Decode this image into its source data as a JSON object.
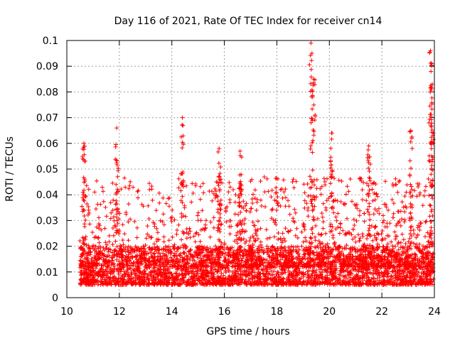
{
  "chart_data": {
    "type": "scatter",
    "title": "Day 116 of 2021, Rate Of TEC Index for receiver cn14",
    "xlabel": "GPS time / hours",
    "ylabel": "ROTI / TECUs",
    "xlim": [
      10,
      24
    ],
    "ylim": [
      0,
      0.1
    ],
    "grid": true,
    "marker": "plus",
    "color": "#ff0000",
    "x_ticks": [
      10,
      12,
      14,
      16,
      18,
      20,
      22,
      24
    ],
    "x_tick_labels": [
      "10",
      "12",
      "14",
      "16",
      "18",
      "20",
      "22",
      "24"
    ],
    "y_ticks": [
      0,
      0.01,
      0.02,
      0.03,
      0.04,
      0.05,
      0.06,
      0.07,
      0.08,
      0.09,
      0.1
    ],
    "y_tick_labels": [
      "0",
      "0.01",
      "0.02",
      "0.03",
      "0.04",
      "0.05",
      "0.06",
      "0.07",
      "0.08",
      "0.09",
      "0.1"
    ],
    "data_x_range": [
      10.5,
      24.0
    ],
    "baseline_band": [
      0.005,
      0.02
    ],
    "spikes": [
      {
        "x": 10.65,
        "y_max": 0.06
      },
      {
        "x": 11.9,
        "y_max": 0.066
      },
      {
        "x": 14.4,
        "y_max": 0.07
      },
      {
        "x": 15.8,
        "y_max": 0.058
      },
      {
        "x": 16.6,
        "y_max": 0.057
      },
      {
        "x": 19.3,
        "y_max": 0.099
      },
      {
        "x": 19.4,
        "y_max": 0.085
      },
      {
        "x": 20.1,
        "y_max": 0.064
      },
      {
        "x": 21.5,
        "y_max": 0.059
      },
      {
        "x": 23.1,
        "y_max": 0.065
      },
      {
        "x": 23.85,
        "y_max": 0.096
      },
      {
        "x": 23.9,
        "y_max": 0.091
      },
      {
        "x": 23.92,
        "y_max": 0.083
      }
    ]
  }
}
